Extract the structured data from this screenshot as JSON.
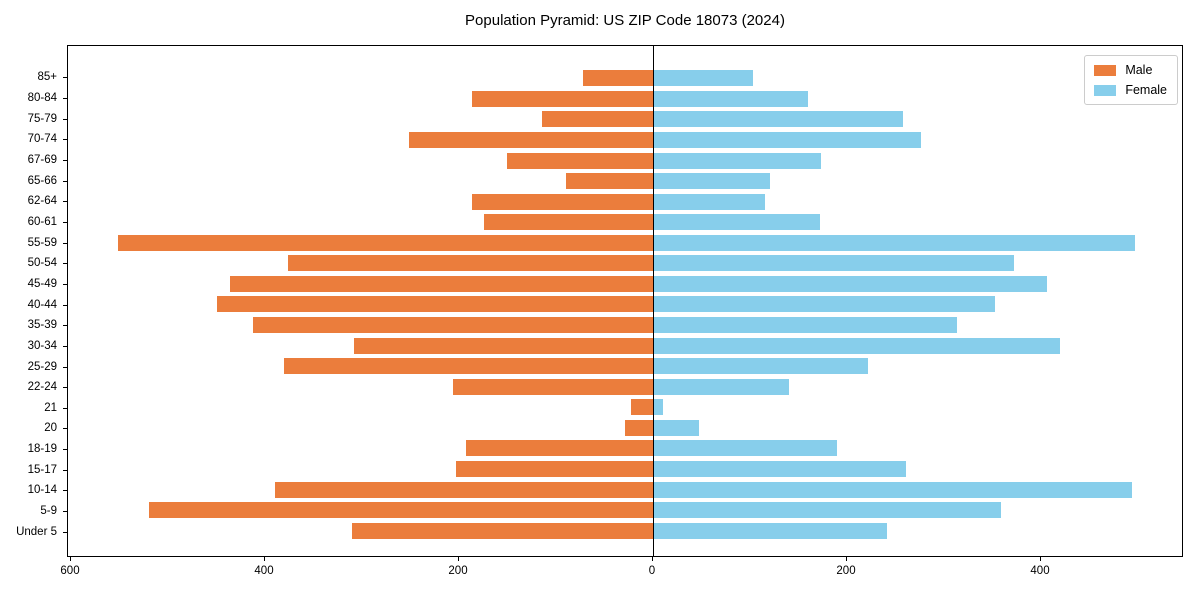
{
  "title": "Population Pyramid: US ZIP Code 18073 (2024)",
  "legend": {
    "male_label": "Male",
    "female_label": "Female"
  },
  "colors": {
    "male": "#EB7D3C",
    "female": "#87CEEB",
    "axis": "#000000"
  },
  "chart_data": {
    "type": "bar",
    "orientation": "horizontal-pyramid",
    "title": "Population Pyramid: US ZIP Code 18073 (2024)",
    "categories_top_to_bottom": [
      "85+",
      "80-84",
      "75-79",
      "70-74",
      "67-69",
      "65-66",
      "62-64",
      "60-61",
      "55-59",
      "50-54",
      "45-49",
      "40-44",
      "35-39",
      "30-34",
      "25-29",
      "22-24",
      "21",
      "20",
      "18-19",
      "15-17",
      "10-14",
      "5-9",
      "Under 5"
    ],
    "series": [
      {
        "name": "Male",
        "side": "left",
        "color": "#EB7D3C",
        "values": [
          72,
          187,
          114,
          252,
          151,
          90,
          187,
          174,
          552,
          376,
          436,
          450,
          412,
          308,
          380,
          206,
          23,
          29,
          193,
          203,
          390,
          520,
          310
        ]
      },
      {
        "name": "Female",
        "side": "right",
        "color": "#87CEEB",
        "values": [
          103,
          160,
          258,
          276,
          173,
          121,
          115,
          172,
          497,
          372,
          406,
          353,
          313,
          420,
          222,
          140,
          10,
          47,
          190,
          261,
          494,
          359,
          241
        ]
      }
    ],
    "x_ticks": [
      -600,
      -400,
      -200,
      0,
      200,
      400
    ],
    "x_tick_labels": [
      "600",
      "400",
      "200",
      "0",
      "200",
      "400"
    ],
    "xlim": [
      -604,
      549
    ],
    "grid": false,
    "legend_position": "upper right",
    "zero_axis_line": true
  }
}
